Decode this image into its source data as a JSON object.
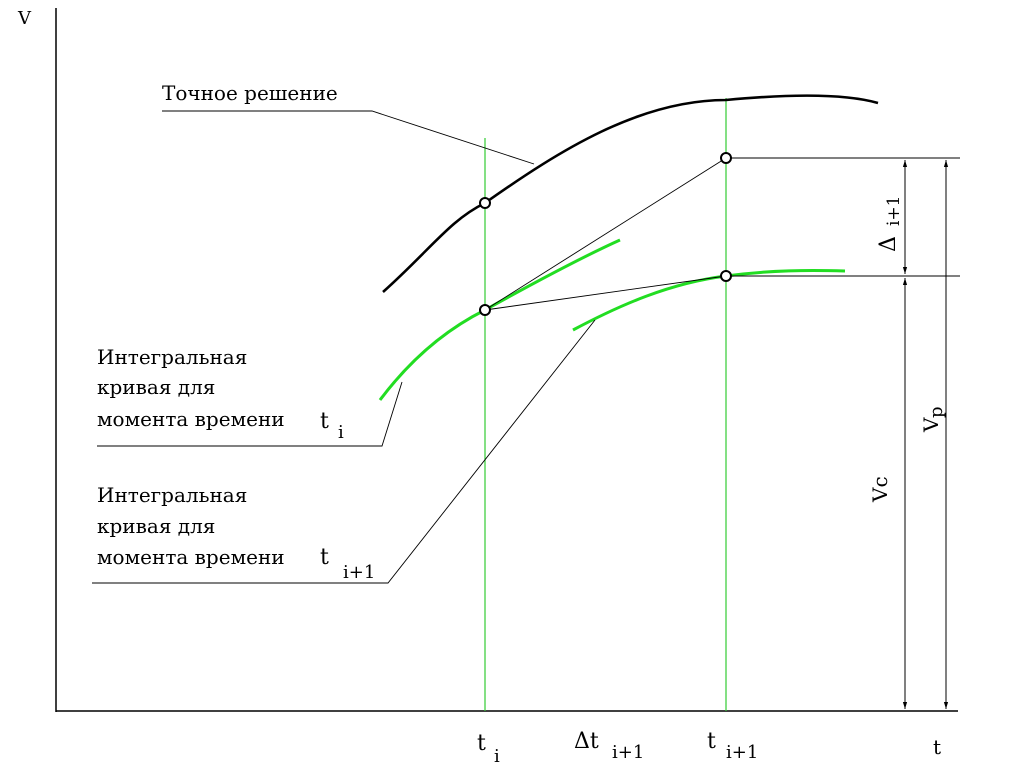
{
  "axes": {
    "y_label": "V",
    "x_label": "t"
  },
  "labels": {
    "exact_solution": "Точное решение",
    "curve_ti": [
      "Интегральная",
      "кривая  для",
      "момента времени"
    ],
    "curve_ti_symbol": "t",
    "curve_ti_sub": "i",
    "curve_ti1": [
      "Интегральная",
      "кривая  для",
      "момента времени"
    ],
    "curve_ti1_symbol": "t",
    "curve_ti1_sub": "i+1"
  },
  "dimensions": {
    "delta_symbol": "Δ",
    "delta_sub": "i+1",
    "vc": "Vc",
    "vp_main": "V",
    "vp_sub": "p"
  },
  "ticks": {
    "ti_symbol": "t",
    "ti_sub": "i",
    "dt_symbol": "Δt",
    "dt_sub": "i+1",
    "ti1_symbol": "t",
    "ti1_sub": "i+1"
  },
  "colors": {
    "curve": "#000000",
    "integral": "#22dd22",
    "guide": "#33cc33"
  }
}
